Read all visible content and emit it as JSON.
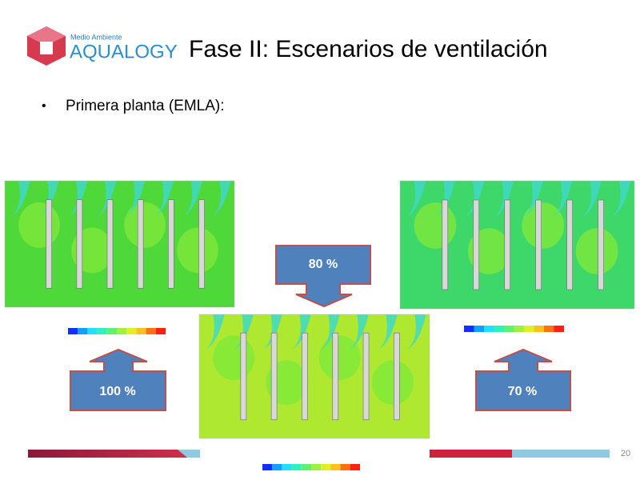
{
  "logo": {
    "tagline": "Medio Ambiente",
    "brand": "AQUALOGY"
  },
  "title": "Fase II: Escenarios de ventilación",
  "bullet": "Primera planta (EMLA):",
  "callouts": [
    "80 %",
    "100 %",
    "70 %"
  ],
  "page_number": "20"
}
